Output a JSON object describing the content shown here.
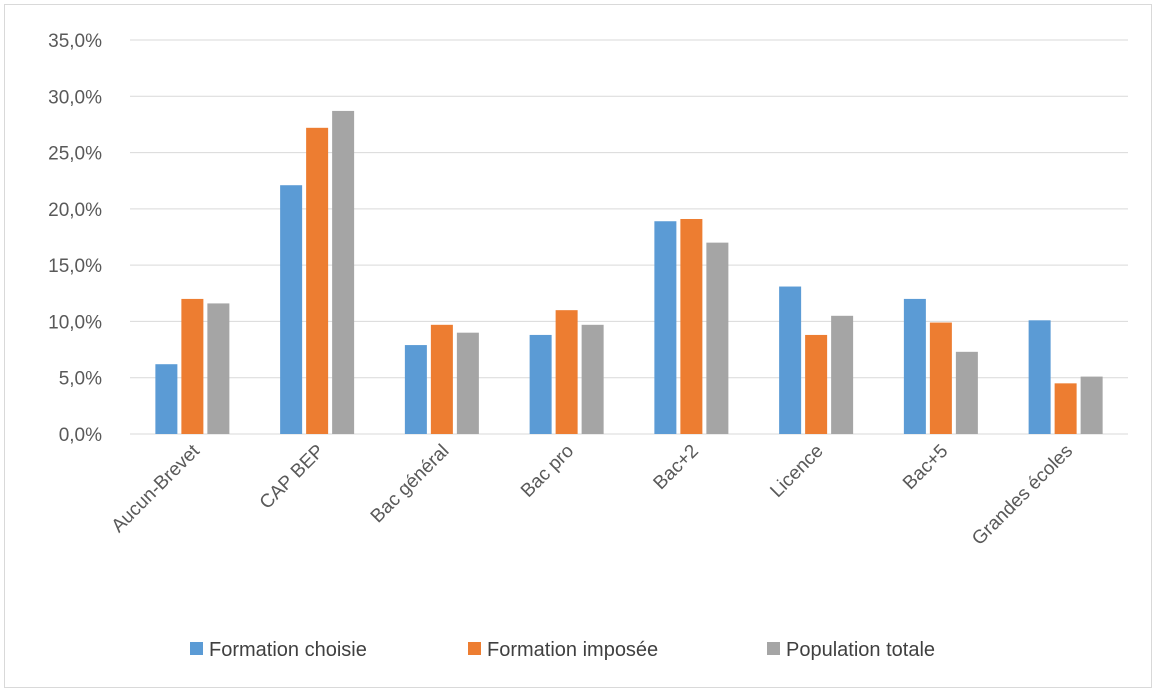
{
  "chart_data": {
    "type": "bar",
    "title": "",
    "xlabel": "",
    "ylabel": "",
    "ylim": [
      0,
      35
    ],
    "y_ticks": [
      "0,0%",
      "5,0%",
      "10,0%",
      "15,0%",
      "20,0%",
      "25,0%",
      "30,0%",
      "35,0%"
    ],
    "y_tick_values": [
      0,
      5,
      10,
      15,
      20,
      25,
      30,
      35
    ],
    "grid": true,
    "legend_position": "bottom",
    "categories": [
      "Aucun-Brevet",
      "CAP BEP",
      "Bac général",
      "Bac pro",
      "Bac+2",
      "Licence",
      "Bac+5",
      "Grandes écoles"
    ],
    "series": [
      {
        "name": "Formation choisie",
        "color": "#5b9bd5",
        "values": [
          6.2,
          22.1,
          7.9,
          8.8,
          18.9,
          13.1,
          12.0,
          10.1
        ]
      },
      {
        "name": "Formation imposée",
        "color": "#ed7d31",
        "values": [
          12.0,
          27.2,
          9.7,
          11.0,
          19.1,
          8.8,
          9.9,
          4.5
        ]
      },
      {
        "name": "Population totale",
        "color": "#a5a5a5",
        "values": [
          11.6,
          28.7,
          9.0,
          9.7,
          17.0,
          10.5,
          7.3,
          5.1
        ]
      }
    ]
  }
}
